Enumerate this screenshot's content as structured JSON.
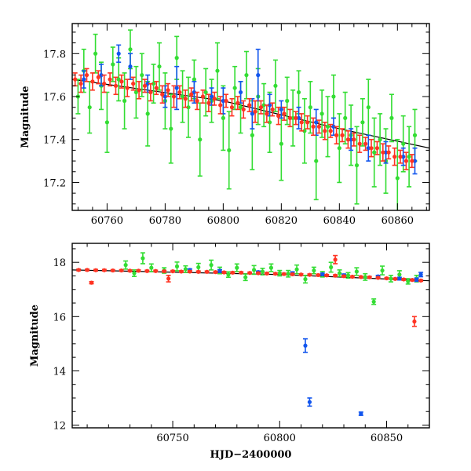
{
  "chart_data": [
    {
      "type": "scatter",
      "panel": "top",
      "title": "",
      "xlabel": "",
      "ylabel": "Magnitude",
      "xlim": [
        60748,
        60871
      ],
      "ylim": [
        17.94,
        17.07
      ],
      "y_inverted": true,
      "xticks_labeled": [
        60760,
        60780,
        60800,
        60820,
        60840,
        60860
      ],
      "yticks_labeled": [
        17.2,
        17.4,
        17.6,
        17.8
      ],
      "x_minor_step": 5,
      "y_minor_step": 0.05,
      "grid": false,
      "legend": "none",
      "trend_line": {
        "x": [
          60748,
          60800,
          60840,
          60871
        ],
        "y": [
          17.68,
          17.58,
          17.45,
          17.36
        ]
      },
      "series": [
        {
          "color": "#33dd33",
          "x": [
            60750,
            60752,
            60754,
            60756,
            60758,
            60760,
            60762,
            60764,
            60766,
            60768,
            60770,
            60772,
            60774,
            60776,
            60778,
            60780,
            60782,
            60784,
            60786,
            60788,
            60790,
            60792,
            60794,
            60796,
            60798,
            60800,
            60802,
            60804,
            60806,
            60808,
            60810,
            60812,
            60814,
            60816,
            60818,
            60820,
            60822,
            60824,
            60826,
            60828,
            60830,
            60832,
            60834,
            60836,
            60838,
            60840,
            60842,
            60844,
            60846,
            60848,
            60850,
            60852,
            60854,
            60856,
            60858,
            60860,
            60862,
            60864,
            60866
          ],
          "y": [
            17.6,
            17.72,
            17.55,
            17.8,
            17.65,
            17.48,
            17.75,
            17.68,
            17.58,
            17.82,
            17.62,
            17.7,
            17.52,
            17.66,
            17.74,
            17.58,
            17.45,
            17.78,
            17.6,
            17.55,
            17.68,
            17.4,
            17.62,
            17.58,
            17.72,
            17.5,
            17.35,
            17.64,
            17.55,
            17.7,
            17.42,
            17.6,
            17.56,
            17.48,
            17.65,
            17.38,
            17.58,
            17.5,
            17.62,
            17.44,
            17.55,
            17.3,
            17.52,
            17.46,
            17.6,
            17.36,
            17.5,
            17.42,
            17.28,
            17.48,
            17.55,
            17.34,
            17.4,
            17.3,
            17.5,
            17.22,
            17.38,
            17.32,
            17.42
          ],
          "err": [
            0.08,
            0.1,
            0.12,
            0.09,
            0.11,
            0.14,
            0.08,
            0.1,
            0.13,
            0.09,
            0.12,
            0.1,
            0.15,
            0.09,
            0.11,
            0.13,
            0.16,
            0.1,
            0.12,
            0.14,
            0.09,
            0.17,
            0.11,
            0.1,
            0.13,
            0.15,
            0.18,
            0.1,
            0.12,
            0.11,
            0.16,
            0.13,
            0.1,
            0.14,
            0.12,
            0.17,
            0.11,
            0.13,
            0.1,
            0.15,
            0.12,
            0.18,
            0.11,
            0.14,
            0.1,
            0.16,
            0.12,
            0.14,
            0.18,
            0.11,
            0.13,
            0.16,
            0.12,
            0.15,
            0.11,
            0.18,
            0.13,
            0.14,
            0.12
          ]
        },
        {
          "color": "#1155ee",
          "x": [
            60752,
            60758,
            60764,
            60768,
            60774,
            60780,
            60784,
            60790,
            60796,
            60800,
            60806,
            60810,
            60812,
            60816,
            60820,
            60826,
            60832,
            60838,
            60844,
            60850,
            60856,
            60862,
            60866
          ],
          "y": [
            17.68,
            17.7,
            17.8,
            17.74,
            17.66,
            17.6,
            17.64,
            17.62,
            17.6,
            17.58,
            17.62,
            17.52,
            17.7,
            17.56,
            17.54,
            17.5,
            17.48,
            17.46,
            17.4,
            17.36,
            17.34,
            17.32,
            17.3
          ],
          "err": [
            0.04,
            0.05,
            0.04,
            0.06,
            0.04,
            0.05,
            0.1,
            0.05,
            0.04,
            0.06,
            0.05,
            0.07,
            0.12,
            0.05,
            0.04,
            0.05,
            0.06,
            0.04,
            0.05,
            0.06,
            0.05,
            0.04,
            0.06
          ]
        },
        {
          "color": "#ff3322",
          "x": [
            60749,
            60751,
            60753,
            60755,
            60757,
            60759,
            60761,
            60763,
            60765,
            60767,
            60769,
            60771,
            60773,
            60775,
            60777,
            60779,
            60781,
            60783,
            60785,
            60787,
            60789,
            60791,
            60793,
            60795,
            60797,
            60799,
            60801,
            60803,
            60805,
            60807,
            60809,
            60811,
            60813,
            60815,
            60817,
            60819,
            60821,
            60823,
            60825,
            60827,
            60829,
            60831,
            60833,
            60835,
            60837,
            60839,
            60841,
            60843,
            60845,
            60847,
            60849,
            60851,
            60853,
            60855,
            60857,
            60859,
            60861,
            60863,
            60865
          ],
          "y": [
            17.68,
            17.66,
            17.7,
            17.67,
            17.69,
            17.66,
            17.68,
            17.65,
            17.67,
            17.64,
            17.66,
            17.63,
            17.65,
            17.62,
            17.64,
            17.61,
            17.63,
            17.6,
            17.62,
            17.59,
            17.61,
            17.58,
            17.6,
            17.57,
            17.59,
            17.56,
            17.58,
            17.55,
            17.57,
            17.54,
            17.56,
            17.53,
            17.55,
            17.52,
            17.54,
            17.51,
            17.52,
            17.5,
            17.5,
            17.48,
            17.48,
            17.46,
            17.46,
            17.44,
            17.44,
            17.42,
            17.42,
            17.4,
            17.4,
            17.38,
            17.38,
            17.36,
            17.36,
            17.34,
            17.34,
            17.32,
            17.32,
            17.3,
            17.3
          ],
          "err": [
            0.03,
            0.04,
            0.03,
            0.04,
            0.03,
            0.04,
            0.03,
            0.04,
            0.03,
            0.04,
            0.03,
            0.04,
            0.03,
            0.04,
            0.03,
            0.04,
            0.03,
            0.05,
            0.03,
            0.04,
            0.03,
            0.04,
            0.03,
            0.04,
            0.03,
            0.04,
            0.03,
            0.04,
            0.03,
            0.04,
            0.03,
            0.05,
            0.03,
            0.04,
            0.03,
            0.04,
            0.03,
            0.04,
            0.03,
            0.04,
            0.03,
            0.04,
            0.03,
            0.04,
            0.03,
            0.04,
            0.03,
            0.04,
            0.03,
            0.04,
            0.03,
            0.04,
            0.03,
            0.04,
            0.03,
            0.04,
            0.03,
            0.04,
            0.03
          ]
        }
      ]
    },
    {
      "type": "scatter",
      "panel": "bottom",
      "title": "",
      "xlabel": "HJD−2400000",
      "ylabel": "Magnitude",
      "xlim": [
        60703,
        60870
      ],
      "ylim": [
        18.7,
        11.9
      ],
      "y_inverted": true,
      "xticks_labeled": [
        60750,
        60800,
        60850
      ],
      "yticks_labeled": [
        12,
        14,
        16,
        18
      ],
      "x_minor_step": 10,
      "y_minor_step": 0.5,
      "grid": false,
      "legend": "none",
      "trend_line": {
        "x": [
          60703,
          60800,
          60870
        ],
        "y": [
          17.72,
          17.55,
          17.32
        ]
      },
      "series": [
        {
          "color": "#33dd33",
          "x": [
            60728,
            60732,
            60736,
            60740,
            60746,
            60752,
            60756,
            60762,
            60768,
            60772,
            60776,
            60780,
            60784,
            60788,
            60792,
            60796,
            60800,
            60804,
            60808,
            60812,
            60816,
            60820,
            60824,
            60828,
            60832,
            60836,
            60840,
            60844,
            60848,
            60852,
            60856,
            60860,
            60864
          ],
          "y": [
            17.9,
            17.6,
            18.15,
            17.8,
            17.7,
            17.85,
            17.75,
            17.82,
            17.9,
            17.7,
            17.55,
            17.8,
            17.45,
            17.72,
            17.66,
            17.8,
            17.6,
            17.58,
            17.74,
            17.38,
            17.7,
            17.56,
            17.82,
            17.6,
            17.52,
            17.66,
            17.46,
            16.55,
            17.7,
            17.4,
            17.55,
            17.3,
            17.4
          ],
          "err": [
            0.15,
            0.12,
            0.2,
            0.14,
            0.1,
            0.16,
            0.12,
            0.14,
            0.18,
            0.12,
            0.1,
            0.14,
            0.12,
            0.16,
            0.12,
            0.14,
            0.1,
            0.12,
            0.16,
            0.14,
            0.12,
            0.1,
            0.18,
            0.12,
            0.1,
            0.14,
            0.12,
            0.1,
            0.16,
            0.12,
            0.14,
            0.1,
            0.12
          ]
        },
        {
          "color": "#1155ee",
          "x": [
            60758,
            60772,
            60790,
            60806,
            60812,
            60814,
            60820,
            60830,
            60838,
            60846,
            60856,
            60864,
            60866
          ],
          "y": [
            17.72,
            17.68,
            17.64,
            17.6,
            14.93,
            12.85,
            17.56,
            17.52,
            12.42,
            17.48,
            17.4,
            17.36,
            17.55
          ],
          "err": [
            0.04,
            0.05,
            0.04,
            0.05,
            0.25,
            0.15,
            0.04,
            0.05,
            0.06,
            0.04,
            0.05,
            0.06,
            0.08
          ]
        },
        {
          "color": "#ff3322",
          "x": [
            60706,
            60710,
            60714,
            60718,
            60722,
            60726,
            60730,
            60734,
            60738,
            60742,
            60746,
            60750,
            60754,
            60758,
            60762,
            60766,
            60770,
            60774,
            60778,
            60782,
            60786,
            60790,
            60794,
            60798,
            60802,
            60806,
            60810,
            60814,
            60818,
            60822,
            60826,
            60830,
            60834,
            60838,
            60842,
            60846,
            60850,
            60854,
            60858,
            60862,
            60866,
            60712,
            60748,
            60826,
            60863
          ],
          "y": [
            17.72,
            17.72,
            17.71,
            17.71,
            17.7,
            17.7,
            17.69,
            17.69,
            17.68,
            17.68,
            17.67,
            17.67,
            17.66,
            17.66,
            17.65,
            17.65,
            17.64,
            17.63,
            17.62,
            17.62,
            17.61,
            17.6,
            17.59,
            17.58,
            17.57,
            17.56,
            17.55,
            17.54,
            17.53,
            17.52,
            17.51,
            17.49,
            17.47,
            17.46,
            17.45,
            17.43,
            17.41,
            17.39,
            17.37,
            17.35,
            17.33,
            17.25,
            17.4,
            18.1,
            15.82
          ],
          "err": [
            0.03,
            0.03,
            0.03,
            0.03,
            0.03,
            0.03,
            0.03,
            0.03,
            0.03,
            0.03,
            0.03,
            0.03,
            0.03,
            0.03,
            0.03,
            0.03,
            0.03,
            0.03,
            0.03,
            0.03,
            0.03,
            0.03,
            0.03,
            0.03,
            0.03,
            0.03,
            0.03,
            0.03,
            0.03,
            0.03,
            0.03,
            0.03,
            0.03,
            0.03,
            0.03,
            0.03,
            0.03,
            0.03,
            0.03,
            0.03,
            0.03,
            0.04,
            0.12,
            0.15,
            0.18
          ]
        }
      ]
    }
  ]
}
